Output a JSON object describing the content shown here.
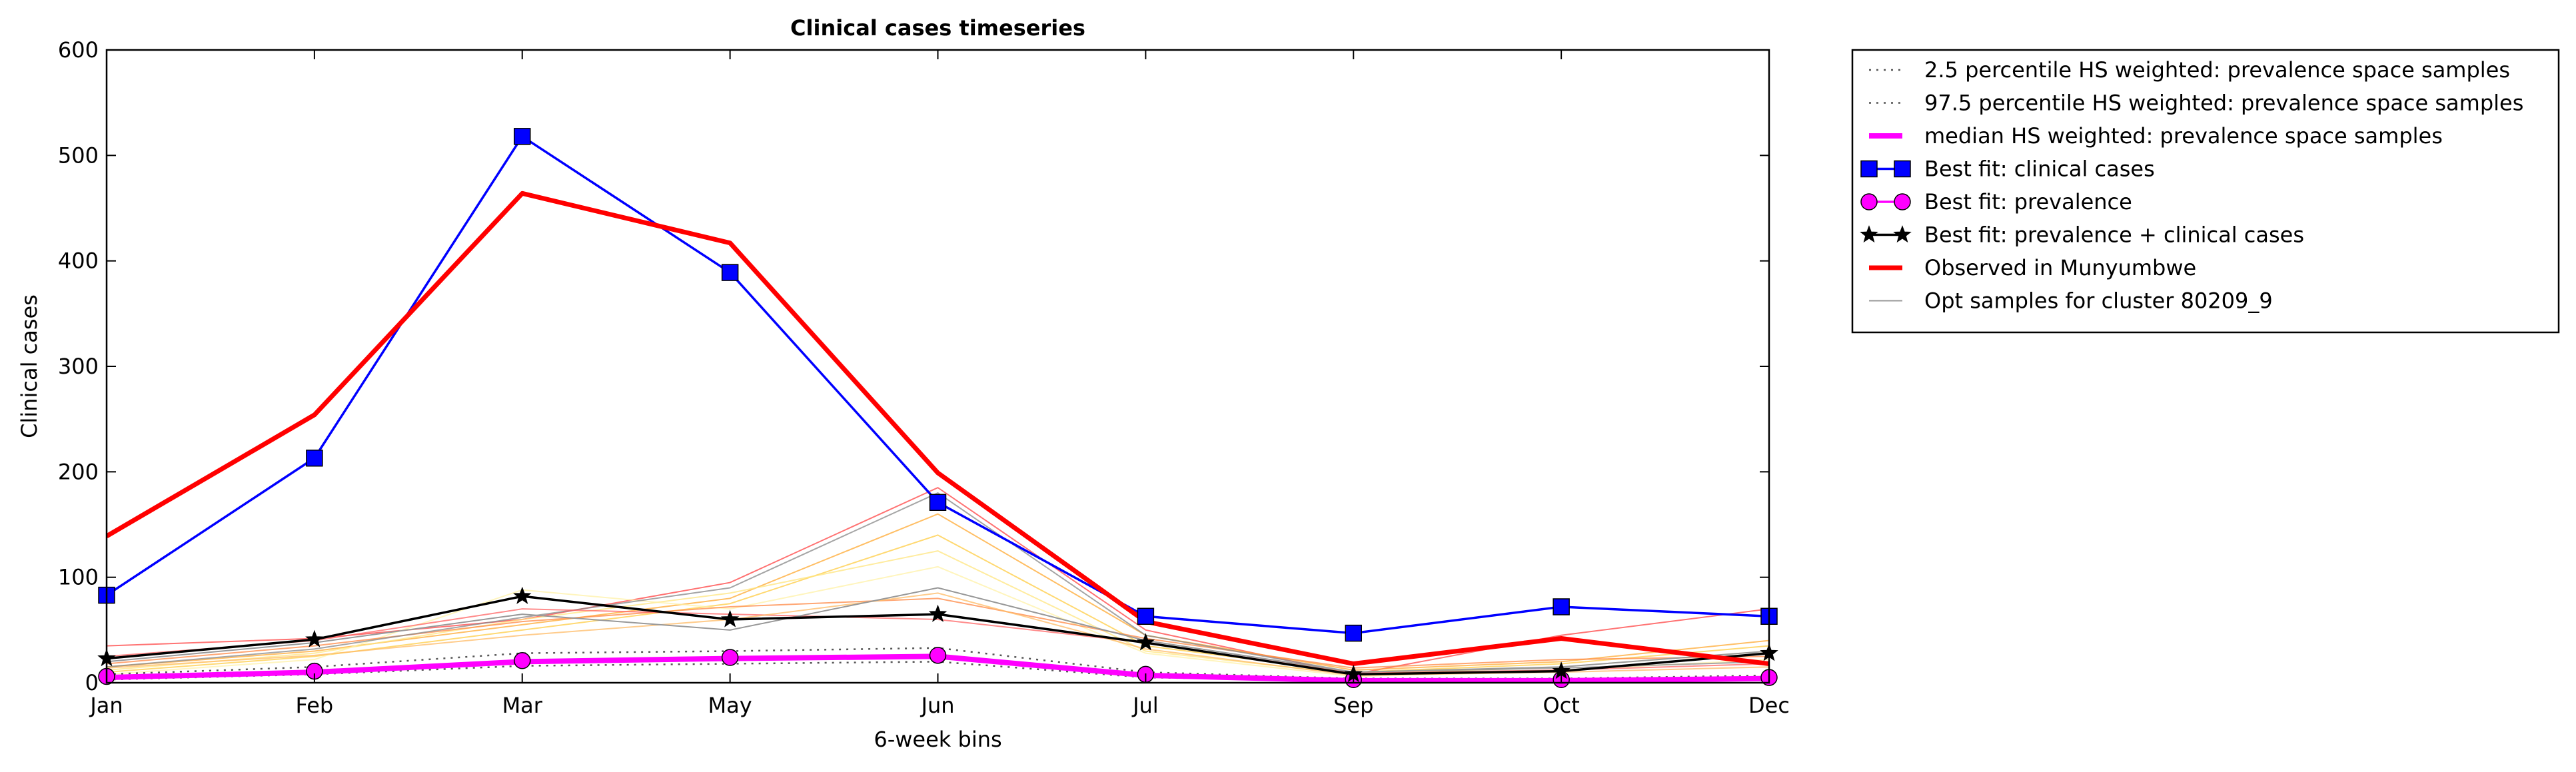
{
  "chart_data": {
    "type": "line",
    "title": "Clinical cases timeseries",
    "xlabel": "6-week bins",
    "ylabel": "Clinical cases",
    "categories": [
      "Jan",
      "Feb",
      "Mar",
      "May",
      "Jun",
      "Jul",
      "Sep",
      "Oct",
      "Dec"
    ],
    "ylim": [
      0,
      600
    ],
    "yticks": [
      0,
      100,
      200,
      300,
      400,
      500,
      600
    ],
    "grid": false,
    "legend_placement": "outside-top-right",
    "series": [
      {
        "name": "2.5 percentile HS weighted: prevalence space samples",
        "style": "dotted",
        "color": "#555555",
        "values": [
          3,
          8,
          16,
          18,
          20,
          5,
          2,
          2,
          3
        ]
      },
      {
        "name": "97.5 percentile HS weighted: prevalence space samples",
        "style": "dotted",
        "color": "#555555",
        "values": [
          8,
          15,
          28,
          30,
          33,
          10,
          4,
          4,
          7
        ]
      },
      {
        "name": "median HS weighted: prevalence space samples",
        "style": "solid-thick",
        "color": "#ff00ff",
        "values": [
          5,
          10,
          20,
          23,
          25,
          7,
          2,
          2,
          4
        ]
      },
      {
        "name": "Best fit: clinical cases",
        "style": "line-square-marker",
        "color": "#0000ff",
        "values": [
          83,
          213,
          518,
          389,
          171,
          63,
          47,
          72,
          63
        ]
      },
      {
        "name": "Best fit: prevalence",
        "style": "line-circle-marker",
        "color": "#ff00ff",
        "values": [
          6,
          11,
          21,
          24,
          26,
          8,
          3,
          3,
          5
        ]
      },
      {
        "name": "Best fit: prevalence + clinical cases",
        "style": "line-star-marker",
        "color": "#000000",
        "values": [
          23,
          41,
          82,
          60,
          65,
          38,
          8,
          11,
          28
        ]
      },
      {
        "name": "Observed in Munyumbwe",
        "style": "solid-thick",
        "color": "#ff0000",
        "values": [
          139,
          254,
          464,
          417,
          199,
          58,
          18,
          42,
          18
        ]
      },
      {
        "name": "Opt samples for cluster 80209_9",
        "style": "thin",
        "color": "#999999",
        "values": [
          20,
          38,
          65,
          50,
          90,
          40,
          10,
          15,
          30
        ]
      }
    ],
    "background_samples": [
      {
        "color": "#ff4444",
        "values": [
          35,
          42,
          60,
          95,
          185,
          50,
          8,
          45,
          70
        ]
      },
      {
        "color": "#ffaa33",
        "values": [
          15,
          30,
          55,
          80,
          160,
          45,
          12,
          20,
          40
        ]
      },
      {
        "color": "#ffcc44",
        "values": [
          10,
          25,
          50,
          75,
          140,
          35,
          10,
          18,
          35
        ]
      },
      {
        "color": "#ffe680",
        "values": [
          12,
          28,
          60,
          85,
          125,
          30,
          8,
          15,
          30
        ]
      },
      {
        "color": "#fff2a8",
        "values": [
          8,
          22,
          88,
          70,
          110,
          28,
          6,
          12,
          22
        ]
      },
      {
        "color": "#ff8844",
        "values": [
          18,
          35,
          58,
          72,
          80,
          42,
          14,
          22,
          25
        ]
      },
      {
        "color": "#888888",
        "values": [
          15,
          32,
          62,
          90,
          180,
          45,
          10,
          14,
          20
        ]
      },
      {
        "color": "#ff6666",
        "values": [
          25,
          40,
          70,
          65,
          60,
          38,
          9,
          12,
          18
        ]
      },
      {
        "color": "#ffbb66",
        "values": [
          14,
          26,
          45,
          60,
          85,
          32,
          7,
          10,
          15
        ]
      }
    ]
  }
}
